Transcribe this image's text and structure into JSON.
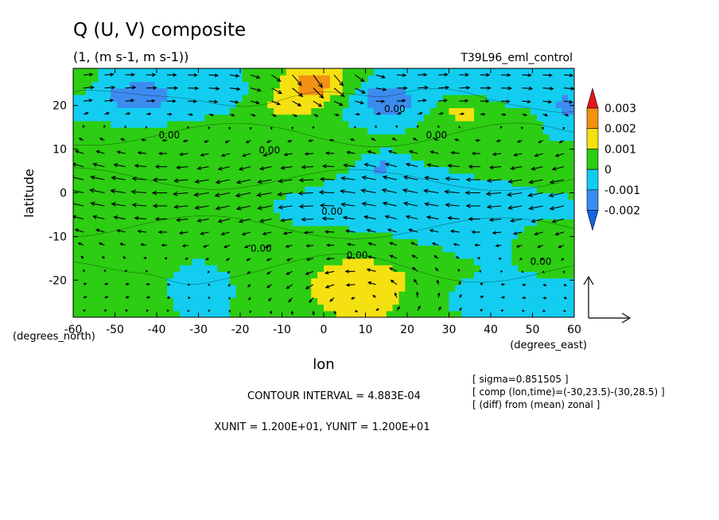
{
  "chart_data": {
    "type": "heatmap",
    "title": "Q (U, V) composite",
    "subtitle": "(1, (m s-1, m s-1))",
    "run_label": "T39L96_eml_control",
    "xlabel": "lon",
    "ylabel": "latitude",
    "x_unit": "(degrees_east)",
    "y_unit": "(degrees_north)",
    "xlim": [
      -60,
      60
    ],
    "ylim": [
      -28.5,
      28.5
    ],
    "x_ticks": [
      -60,
      -50,
      -40,
      -30,
      -20,
      -10,
      0,
      10,
      20,
      30,
      40,
      50,
      60
    ],
    "y_ticks": [
      -20,
      -10,
      0,
      10,
      20
    ],
    "x_tick_labels": [
      "-60",
      "-50",
      "-40",
      "-30",
      "-20",
      "-10",
      "0",
      "10",
      "20",
      "30",
      "40",
      "50",
      "60"
    ],
    "y_tick_labels": [
      "-20",
      "-10",
      "0",
      "10",
      "20"
    ],
    "colorbar": {
      "levels": [
        0.003,
        0.002,
        0.001,
        0,
        -0.001,
        -0.002
      ],
      "labels": [
        "0.003",
        "0.002",
        "0.001",
        "0",
        "-0.001",
        "-0.002"
      ],
      "colors": [
        "#e8141c",
        "#f29112",
        "#f5e012",
        "#2ccd12",
        "#12cdf0",
        "#3c8cf0",
        "#1464e6"
      ]
    },
    "contour_labels": [
      {
        "text": "0.00",
        "lon": -37,
        "lat": 12.5
      },
      {
        "text": "0.00",
        "lon": -13,
        "lat": 9
      },
      {
        "text": "0.00",
        "lon": 17,
        "lat": 18.5
      },
      {
        "text": "0.00",
        "lon": 27,
        "lat": 12.5
      },
      {
        "text": "0.00",
        "lon": 2,
        "lat": -5
      },
      {
        "text": "0.00",
        "lon": -15,
        "lat": -13.5
      },
      {
        "text": "0.00",
        "lon": 8,
        "lat": -15
      },
      {
        "text": "0.00",
        "lon": 52,
        "lat": -16.5
      }
    ],
    "anomaly_blobs": [
      {
        "lon": -2,
        "lat": 25,
        "rlon": 8,
        "rlat": 5,
        "level": 0.0025
      },
      {
        "lon": 9,
        "lat": -22,
        "rlon": 16,
        "rlat": 9,
        "level": 0.0018
      },
      {
        "lon": -40,
        "lat": -21,
        "rlon": 6,
        "rlat": 6.5,
        "level": 0.0014
      },
      {
        "lon": -10,
        "lat": 20,
        "rlon": 8,
        "rlat": 5,
        "level": 0.0012
      },
      {
        "lon": 33,
        "lat": 19,
        "rlon": 6,
        "rlat": 3,
        "level": 0.0011
      },
      {
        "lon": -58,
        "lat": 26,
        "rlon": 3,
        "rlat": 3.5,
        "level": 0.0011
      },
      {
        "lon": -44,
        "lat": 22,
        "rlon": 10,
        "rlat": 5,
        "level": -0.0012
      },
      {
        "lon": 15,
        "lat": 21,
        "rlon": 7,
        "rlat": 4,
        "level": -0.0016
      },
      {
        "lon": -35,
        "lat": -21,
        "rlon": 8,
        "rlat": 5,
        "level": -0.0013
      },
      {
        "lon": 14,
        "lat": 6,
        "rlon": 3.5,
        "rlat": 2,
        "level": -0.0012
      },
      {
        "lon": 58,
        "lat": 18,
        "rlon": 6,
        "rlat": 6,
        "level": -0.0011
      }
    ],
    "vector_scale": {
      "xunit": "1.200E+01",
      "yunit": "1.200E+01"
    },
    "contour_interval_text": "CONTOUR INTERVAL = 4.883E-04",
    "unit_text": "XUNIT = 1.200E+01, YUNIT = 1.200E+01",
    "meta_lines": [
      "[ sigma=0.851505 ]",
      "[ comp (lon,time)=(-30,23.5)-(30,28.5) ]",
      "[ (diff) from (mean) zonal ]"
    ]
  }
}
